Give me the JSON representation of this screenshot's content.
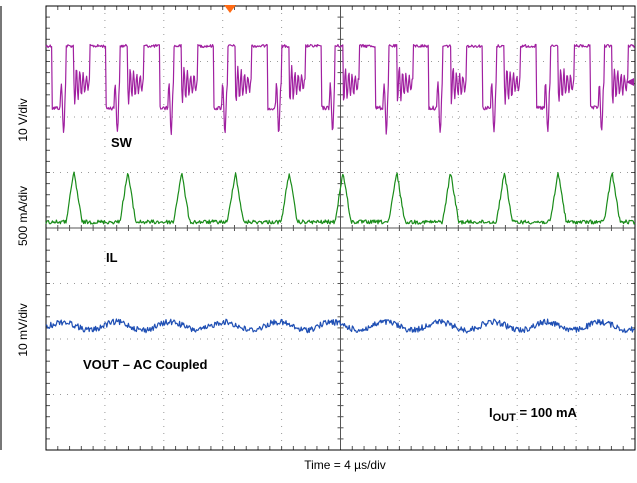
{
  "chart_data": {
    "type": "line",
    "title": "",
    "xlabel": "Time = 4 µs/div",
    "grid": true,
    "divisions": {
      "x": 10,
      "y": 8
    },
    "channels": [
      {
        "name": "SW",
        "scale_label": "10 V/div",
        "color": "#a020a0",
        "description": "switch-node square wave"
      },
      {
        "name": "IL",
        "scale_label": "500 mA/div",
        "color": "#1a8c1a",
        "description": "triangular inductor current"
      },
      {
        "name": "VOUT – AC Coupled",
        "scale_label": "10 mV/div",
        "color": "#1f4fb4",
        "description": "output ripple"
      }
    ],
    "annotation": {
      "main": "I",
      "sub": "OUT",
      "rest": " = 100 mA"
    },
    "trigger_color": "#ff6a13"
  }
}
